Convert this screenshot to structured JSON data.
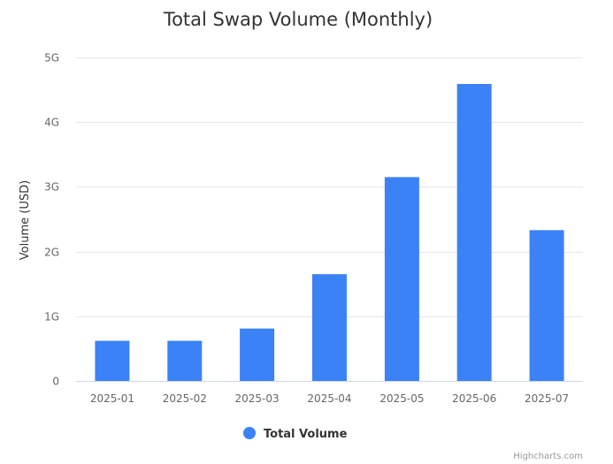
{
  "chart_data": {
    "type": "bar",
    "title": "Total Swap Volume (Monthly)",
    "xlabel": "",
    "ylabel": "Volume (USD)",
    "categories": [
      "2025-01",
      "2025-02",
      "2025-03",
      "2025-04",
      "2025-05",
      "2025-06",
      "2025-07"
    ],
    "series": [
      {
        "name": "Total Volume",
        "color": "#3b82f6",
        "values": [
          620000000,
          620000000,
          810000000,
          1650000000,
          3150000000,
          4590000000,
          2330000000
        ]
      }
    ],
    "ylim": [
      0,
      5000000000
    ],
    "yticks": [
      {
        "value": 0,
        "label": "0"
      },
      {
        "value": 1000000000,
        "label": "1G"
      },
      {
        "value": 2000000000,
        "label": "2G"
      },
      {
        "value": 3000000000,
        "label": "3G"
      },
      {
        "value": 4000000000,
        "label": "4G"
      },
      {
        "value": 5000000000,
        "label": "5G"
      }
    ],
    "grid": true,
    "legend": "bottom-center",
    "credits": "Highcharts.com"
  }
}
